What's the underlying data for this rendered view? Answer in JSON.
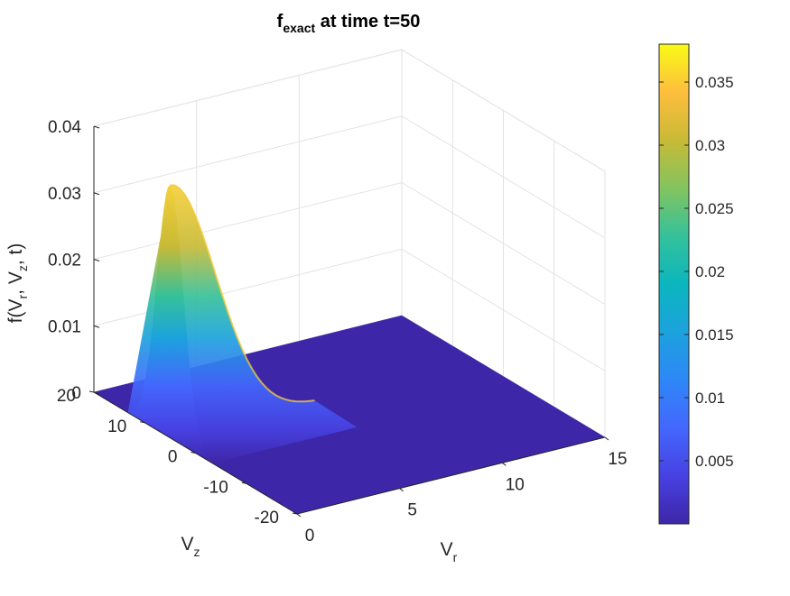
{
  "chart_data": {
    "type": "surface",
    "title": {
      "base": "f",
      "subscript": "exact",
      "rest": " at time t=50"
    },
    "xlabel": {
      "base": "V",
      "subscript": "r"
    },
    "ylabel": {
      "base": "V",
      "subscript": "z"
    },
    "zlabel": {
      "p1": "f(V",
      "s1": "r",
      "p2": ", V",
      "s2": "z",
      "p3": ", t)"
    },
    "xlim": [
      0,
      15
    ],
    "ylim": [
      -20,
      20
    ],
    "zlim": [
      0,
      0.04
    ],
    "x_ticks": [
      "0",
      "5",
      "10",
      "15"
    ],
    "y_ticks": [
      "-20",
      "-10",
      "0",
      "10",
      "20"
    ],
    "z_ticks": [
      "0",
      "0.01",
      "0.02",
      "0.03",
      "0.04"
    ],
    "surface_domain": {
      "vr": [
        0,
        15
      ],
      "vz": [
        -20,
        20
      ]
    },
    "peak": {
      "vr": 0,
      "vz": 5,
      "value": 0.038
    },
    "shape": "gaussian in Vr and Vz centered near Vr=0, Vz=5; near zero elsewhere",
    "grid": true,
    "colormap": "parula",
    "colorbar": {
      "range": [
        0,
        0.038
      ],
      "ticks": [
        "0.005",
        "0.01",
        "0.015",
        "0.02",
        "0.025",
        "0.03",
        "0.035"
      ],
      "tick_values": [
        0.005,
        0.01,
        0.015,
        0.02,
        0.025,
        0.03,
        0.035
      ]
    }
  }
}
